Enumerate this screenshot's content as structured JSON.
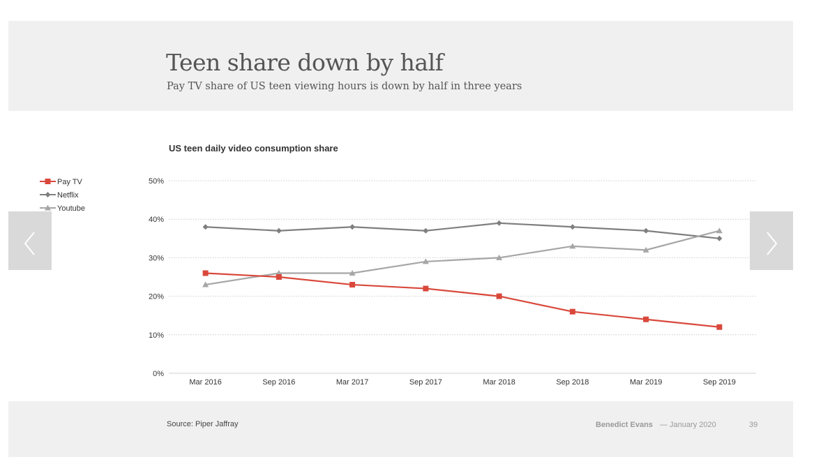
{
  "slide": {
    "title": "Teen share down by half",
    "subtitle": "Pay TV share of  US teen viewing hours is down by half in three years"
  },
  "footer": {
    "source": "Source: Piper Jaffray",
    "author": "Benedict Evans",
    "date": "— January 2020",
    "page_number": "39"
  },
  "nav": {
    "prev_icon": "chevron-left-icon",
    "next_icon": "chevron-right-icon"
  },
  "colors": {
    "pay_tv": "#d9483b",
    "netflix": "#7f7f7f",
    "youtube": "#a6a6a6",
    "grid": "#bfbfbf",
    "axis": "#d0d0d0",
    "text": "#333333"
  },
  "chart_data": {
    "type": "line",
    "title": "US teen daily video consumption share",
    "xlabel": "",
    "ylabel": "",
    "categories": [
      "Mar 2016",
      "Sep 2016",
      "Mar 2017",
      "Sep 2017",
      "Mar 2018",
      "Sep 2018",
      "Mar 2019",
      "Sep 2019"
    ],
    "ylim": [
      0,
      50
    ],
    "yticks": [
      0,
      10,
      20,
      30,
      40,
      50
    ],
    "ytick_labels": [
      "0%",
      "10%",
      "20%",
      "30%",
      "40%",
      "50%"
    ],
    "grid": true,
    "legend_position": "top-left",
    "series": [
      {
        "name": "Pay TV",
        "marker": "square",
        "values": [
          26,
          25,
          23,
          22,
          20,
          16,
          14,
          12
        ]
      },
      {
        "name": "Netflix",
        "marker": "diamond",
        "values": [
          38,
          37,
          38,
          37,
          39,
          38,
          37,
          35
        ]
      },
      {
        "name": "Youtube",
        "marker": "triangle",
        "values": [
          23,
          26,
          26,
          29,
          30,
          33,
          32,
          37
        ]
      }
    ]
  }
}
